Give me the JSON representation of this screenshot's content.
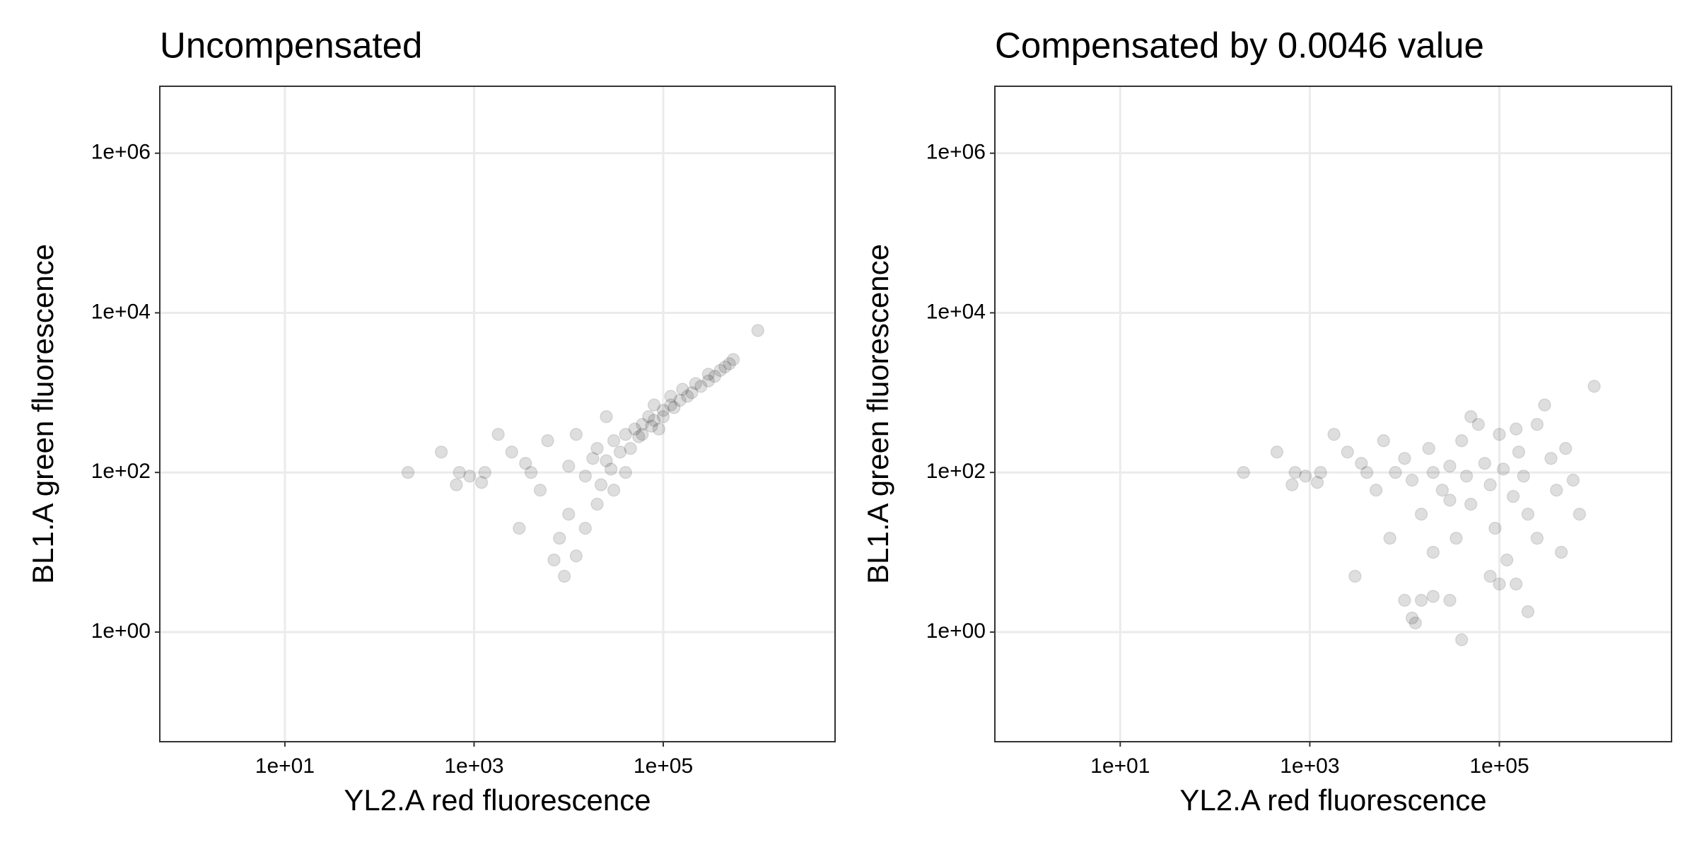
{
  "chart_data": [
    {
      "type": "scatter",
      "title": "Uncompensated",
      "xlabel": "YL2.A red fluorescence",
      "ylabel": "BL1.A green fluorescence",
      "xscale": "log",
      "yscale": "log",
      "grid": true,
      "color": "#000000",
      "opacity": 0.13,
      "xlim": [
        0.476,
        6550000
      ],
      "ylim": [
        0.0423,
        6900000
      ],
      "xticks": [
        {
          "value": 10,
          "label": "1e+01"
        },
        {
          "value": 1000,
          "label": "1e+03"
        },
        {
          "value": 100000,
          "label": "1e+05"
        }
      ],
      "yticks": [
        {
          "value": 1,
          "label": "1e+00"
        },
        {
          "value": 100,
          "label": "1e+02"
        },
        {
          "value": 10000,
          "label": "1e+04"
        },
        {
          "value": 1000000,
          "label": "1e+06"
        }
      ],
      "x": [
        200,
        450,
        650,
        700,
        900,
        1300,
        1200,
        1800,
        2500,
        3000,
        3500,
        4000,
        5000,
        6000,
        7000,
        8000,
        9000,
        10000,
        12000,
        15000,
        20000,
        25000,
        30000,
        12000,
        18000,
        40000,
        10000,
        15000,
        20000,
        25000,
        30000,
        40000,
        50000,
        60000,
        70000,
        80000,
        100000,
        120000,
        150000,
        180000,
        200000,
        250000,
        300000,
        350000,
        400000,
        500000,
        550000,
        1000000,
        80000,
        120000,
        60000,
        90000,
        160000,
        220000,
        45000,
        35000,
        28000,
        22000,
        300000,
        450000,
        130000,
        100000,
        75000,
        55000
      ],
      "y": [
        100,
        180,
        70,
        100,
        90,
        100,
        75,
        300,
        180,
        20,
        130,
        100,
        60,
        250,
        8,
        15,
        5,
        30,
        9,
        20,
        40,
        500,
        60,
        300,
        150,
        100,
        120,
        90,
        200,
        140,
        250,
        300,
        350,
        400,
        500,
        450,
        600,
        700,
        800,
        900,
        1000,
        1200,
        1400,
        1600,
        1900,
        2300,
        2600,
        6000,
        700,
        900,
        300,
        350,
        1100,
        1300,
        200,
        180,
        110,
        70,
        1700,
        2100,
        650,
        500,
        380,
        280
      ]
    },
    {
      "type": "scatter",
      "title": "Compensated by 0.0046 value",
      "xlabel": "YL2.A red fluorescence",
      "ylabel": "BL1.A green fluorescence",
      "xscale": "log",
      "yscale": "log",
      "grid": true,
      "color": "#000000",
      "opacity": 0.13,
      "xlim": [
        0.476,
        6550000
      ],
      "ylim": [
        0.0423,
        6900000
      ],
      "xticks": [
        {
          "value": 10,
          "label": "1e+01"
        },
        {
          "value": 1000,
          "label": "1e+03"
        },
        {
          "value": 100000,
          "label": "1e+05"
        }
      ],
      "yticks": [
        {
          "value": 1,
          "label": "1e+00"
        },
        {
          "value": 100,
          "label": "1e+02"
        },
        {
          "value": 10000,
          "label": "1e+04"
        },
        {
          "value": 1000000,
          "label": "1e+06"
        }
      ],
      "x": [
        200,
        450,
        650,
        700,
        900,
        1300,
        1200,
        1800,
        2500,
        3000,
        3500,
        4000,
        5000,
        6000,
        7000,
        8000,
        10000,
        12000,
        13000,
        15000,
        20000,
        30000,
        40000,
        80000,
        100000,
        150000,
        200000,
        1000000,
        10000,
        12000,
        15000,
        18000,
        20000,
        25000,
        30000,
        35000,
        40000,
        45000,
        50000,
        60000,
        70000,
        80000,
        90000,
        100000,
        110000,
        120000,
        140000,
        160000,
        180000,
        200000,
        250000,
        300000,
        350000,
        400000,
        450000,
        500000,
        600000,
        700000,
        20000,
        50000,
        150000,
        250000,
        30000
      ],
      "y": [
        100,
        180,
        70,
        100,
        90,
        100,
        75,
        300,
        180,
        5,
        130,
        100,
        60,
        250,
        15,
        100,
        2.5,
        1.5,
        1.3,
        2.5,
        2.8,
        2.5,
        0.8,
        5,
        4,
        4,
        1.8,
        1200,
        150,
        80,
        30,
        200,
        100,
        60,
        120,
        15,
        250,
        90,
        40,
        400,
        130,
        70,
        20,
        300,
        110,
        8,
        50,
        180,
        90,
        30,
        400,
        700,
        150,
        60,
        10,
        200,
        80,
        30,
        10,
        500,
        350,
        15,
        45
      ]
    }
  ]
}
